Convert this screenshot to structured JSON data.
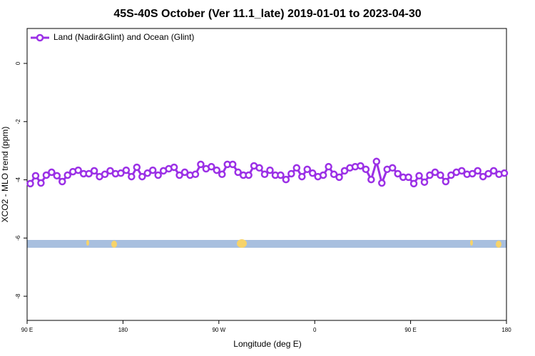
{
  "chart_data": {
    "type": "line",
    "title": "45S-40S October (Ver 11.1_late)   2019-01-01 to 2023-04-30",
    "xlabel": "Longitude (deg E)",
    "ylabel": "XCO2 - MLO trend (ppm)",
    "xlim": [
      90,
      540
    ],
    "ylim": [
      -8.83,
      1.2
    ],
    "xticks": [
      {
        "value": 90,
        "label": "90 E"
      },
      180,
      {
        "value": 270,
        "label": "90 W"
      },
      {
        "value": 360,
        "label": "0"
      },
      {
        "value": 450,
        "label": "90 E"
      },
      {
        "value": 540,
        "label": "180"
      }
    ],
    "yticks": [
      0,
      -2,
      -4,
      -6,
      -8
    ],
    "legend": "top-left",
    "x": [
      93,
      98,
      103,
      108,
      113,
      118,
      123,
      128,
      133,
      138,
      143,
      148,
      153,
      158,
      163,
      168,
      173,
      178,
      183,
      188,
      193,
      198,
      203,
      208,
      213,
      218,
      223,
      228,
      233,
      238,
      243,
      248,
      253,
      258,
      263,
      268,
      273,
      278,
      283,
      288,
      293,
      298,
      303,
      308,
      313,
      318,
      323,
      328,
      333,
      338,
      343,
      348,
      353,
      358,
      363,
      368,
      373,
      378,
      383,
      388,
      393,
      398,
      403,
      408,
      413,
      418,
      423,
      428,
      433,
      438,
      443,
      448,
      453,
      458,
      463,
      468,
      473,
      478,
      483,
      488,
      493,
      498,
      503,
      508,
      513,
      518,
      523,
      528,
      533,
      538
    ],
    "series": [
      {
        "name": "Land (Nadir&Glint) and Ocean (Glint)",
        "color": "#9b30e6",
        "values": [
          -4.13,
          -3.86,
          -4.11,
          -3.84,
          -3.74,
          -3.86,
          -4.06,
          -3.84,
          -3.72,
          -3.67,
          -3.79,
          -3.79,
          -3.69,
          -3.89,
          -3.81,
          -3.69,
          -3.79,
          -3.77,
          -3.67,
          -3.89,
          -3.57,
          -3.89,
          -3.77,
          -3.67,
          -3.84,
          -3.69,
          -3.62,
          -3.57,
          -3.84,
          -3.74,
          -3.84,
          -3.81,
          -3.47,
          -3.62,
          -3.55,
          -3.67,
          -3.81,
          -3.47,
          -3.47,
          -3.74,
          -3.84,
          -3.84,
          -3.52,
          -3.59,
          -3.81,
          -3.67,
          -3.84,
          -3.84,
          -3.99,
          -3.79,
          -3.59,
          -3.89,
          -3.64,
          -3.77,
          -3.89,
          -3.84,
          -3.55,
          -3.81,
          -3.91,
          -3.69,
          -3.59,
          -3.55,
          -3.52,
          -3.64,
          -3.99,
          -3.37,
          -4.11,
          -3.64,
          -3.59,
          -3.79,
          -3.91,
          -3.91,
          -4.13,
          -3.86,
          -4.08,
          -3.84,
          -3.74,
          -3.84,
          -4.06,
          -3.84,
          -3.74,
          -3.69,
          -3.81,
          -3.79,
          -3.69,
          -3.89,
          -3.79,
          -3.69,
          -3.81,
          -3.77
        ]
      }
    ]
  }
}
